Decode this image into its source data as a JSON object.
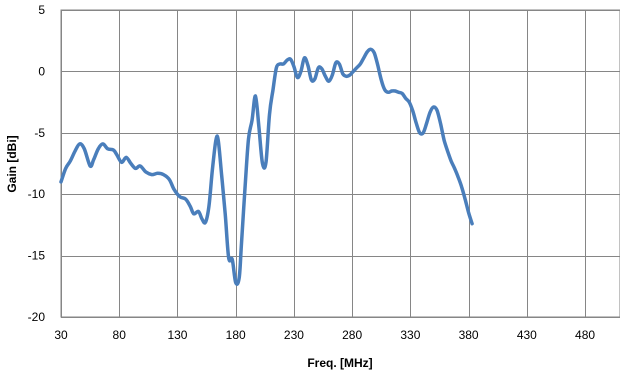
{
  "chart_data": {
    "type": "line",
    "title": "",
    "xlabel": "Freq. [MHz]",
    "ylabel": "Gain [dBi]",
    "xlim": [
      30,
      510
    ],
    "ylim": [
      -20,
      5
    ],
    "x_ticks": [
      30,
      80,
      130,
      180,
      230,
      280,
      330,
      380,
      430,
      480
    ],
    "y_ticks": [
      5,
      0,
      -5,
      -10,
      -15,
      -20
    ],
    "grid": true,
    "legend": "none",
    "series": [
      {
        "color": "#4a7ebb",
        "points": [
          [
            30,
            -9.0
          ],
          [
            34,
            -7.9
          ],
          [
            38,
            -7.3
          ],
          [
            42,
            -6.5
          ],
          [
            46,
            -5.9
          ],
          [
            50,
            -6.3
          ],
          [
            55,
            -7.7
          ],
          [
            58,
            -7.2
          ],
          [
            62,
            -6.3
          ],
          [
            66,
            -5.9
          ],
          [
            70,
            -6.3
          ],
          [
            75,
            -6.4
          ],
          [
            78,
            -6.8
          ],
          [
            82,
            -7.4
          ],
          [
            86,
            -7.0
          ],
          [
            90,
            -7.5
          ],
          [
            94,
            -7.9
          ],
          [
            98,
            -7.7
          ],
          [
            103,
            -8.2
          ],
          [
            108,
            -8.4
          ],
          [
            113,
            -8.3
          ],
          [
            118,
            -8.4
          ],
          [
            123,
            -8.8
          ],
          [
            127,
            -9.6
          ],
          [
            132,
            -10.2
          ],
          [
            137,
            -10.4
          ],
          [
            141,
            -11.0
          ],
          [
            144,
            -11.6
          ],
          [
            148,
            -11.4
          ],
          [
            151,
            -12.0
          ],
          [
            154,
            -12.3
          ],
          [
            157,
            -11.0
          ],
          [
            160,
            -8.0
          ],
          [
            163,
            -5.6
          ],
          [
            165,
            -5.6
          ],
          [
            168,
            -8.5
          ],
          [
            171,
            -11.6
          ],
          [
            174,
            -15.2
          ],
          [
            177,
            -15.3
          ],
          [
            180,
            -17.2
          ],
          [
            183,
            -16.8
          ],
          [
            185,
            -14.0
          ],
          [
            188,
            -9.5
          ],
          [
            191,
            -5.5
          ],
          [
            194,
            -4.0
          ],
          [
            197,
            -2.0
          ],
          [
            200,
            -4.6
          ],
          [
            203,
            -7.5
          ],
          [
            206,
            -7.4
          ],
          [
            209,
            -3.5
          ],
          [
            212,
            -1.5
          ],
          [
            215,
            0.3
          ],
          [
            218,
            0.6
          ],
          [
            221,
            0.6
          ],
          [
            224,
            0.9
          ],
          [
            227,
            1.0
          ],
          [
            230,
            0.4
          ],
          [
            233,
            -0.5
          ],
          [
            236,
            0.0
          ],
          [
            239,
            1.1
          ],
          [
            242,
            0.5
          ],
          [
            245,
            -0.7
          ],
          [
            248,
            -0.6
          ],
          [
            251,
            0.3
          ],
          [
            254,
            0.2
          ],
          [
            257,
            -0.4
          ],
          [
            260,
            -0.8
          ],
          [
            263,
            -0.3
          ],
          [
            266,
            0.7
          ],
          [
            269,
            0.6
          ],
          [
            272,
            -0.2
          ],
          [
            275,
            -0.4
          ],
          [
            278,
            -0.3
          ],
          [
            281,
            0.0
          ],
          [
            284,
            0.3
          ],
          [
            287,
            0.6
          ],
          [
            290,
            1.1
          ],
          [
            293,
            1.6
          ],
          [
            296,
            1.8
          ],
          [
            299,
            1.5
          ],
          [
            302,
            0.5
          ],
          [
            305,
            -0.7
          ],
          [
            308,
            -1.5
          ],
          [
            311,
            -1.7
          ],
          [
            314,
            -1.6
          ],
          [
            317,
            -1.6
          ],
          [
            320,
            -1.7
          ],
          [
            323,
            -1.8
          ],
          [
            326,
            -2.2
          ],
          [
            329,
            -2.5
          ],
          [
            332,
            -3.2
          ],
          [
            335,
            -4.2
          ],
          [
            338,
            -5.0
          ],
          [
            341,
            -5.0
          ],
          [
            344,
            -4.2
          ],
          [
            347,
            -3.3
          ],
          [
            350,
            -2.9
          ],
          [
            353,
            -3.2
          ],
          [
            356,
            -4.3
          ],
          [
            359,
            -5.6
          ],
          [
            362,
            -6.5
          ],
          [
            365,
            -7.3
          ],
          [
            368,
            -7.9
          ],
          [
            371,
            -8.6
          ],
          [
            374,
            -9.4
          ],
          [
            377,
            -10.4
          ],
          [
            380,
            -11.5
          ],
          [
            383,
            -12.4
          ]
        ]
      }
    ]
  }
}
